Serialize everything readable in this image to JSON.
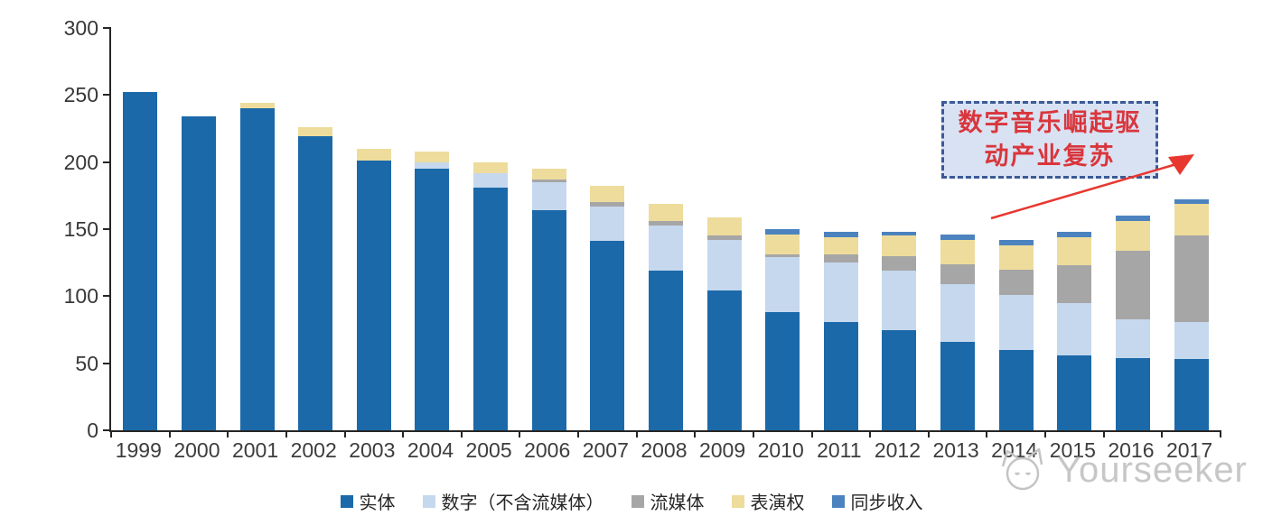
{
  "chart_data": {
    "type": "bar",
    "stacked": true,
    "categories": [
      "1999",
      "2000",
      "2001",
      "2002",
      "2003",
      "2004",
      "2005",
      "2006",
      "2007",
      "2008",
      "2009",
      "2010",
      "2011",
      "2012",
      "2013",
      "2014",
      "2015",
      "2016",
      "2017"
    ],
    "series": [
      {
        "name": "实体",
        "color": "#1b69a9",
        "values": [
          252,
          234,
          240,
          219,
          201,
          195,
          181,
          164,
          141,
          119,
          104,
          88,
          81,
          75,
          66,
          60,
          56,
          54,
          53
        ]
      },
      {
        "name": "数字（不含流媒体）",
        "color": "#c5d8ee",
        "values": [
          0,
          0,
          0,
          0,
          0,
          5,
          11,
          21,
          26,
          34,
          38,
          41,
          44,
          44,
          43,
          41,
          39,
          29,
          28
        ]
      },
      {
        "name": "流媒体",
        "color": "#a6a6a6",
        "values": [
          0,
          0,
          0,
          0,
          0,
          0,
          0,
          2,
          3,
          3,
          3,
          2,
          6,
          11,
          15,
          19,
          28,
          51,
          64
        ]
      },
      {
        "name": "表演权",
        "color": "#eedc9c",
        "values": [
          0,
          0,
          4,
          7,
          9,
          8,
          8,
          8,
          12,
          13,
          14,
          15,
          13,
          15,
          18,
          18,
          21,
          22,
          24
        ]
      },
      {
        "name": "同步收入",
        "color": "#4c83bf",
        "values": [
          0,
          0,
          0,
          0,
          0,
          0,
          0,
          0,
          0,
          0,
          0,
          4,
          4,
          3,
          4,
          4,
          4,
          4,
          3
        ]
      }
    ],
    "title": "",
    "xlabel": "",
    "ylabel": "",
    "ylim": [
      0,
      300
    ],
    "yticks": [
      0,
      50,
      100,
      150,
      200,
      250,
      300
    ],
    "grid": false,
    "legend_position": "bottom"
  },
  "axis": {
    "line_color": "#262626",
    "label_color": "#3d3d3d"
  },
  "annotation": {
    "text": "数字音乐崛起驱动产业复苏",
    "line1": "数字音乐崛起驱",
    "line2": "动产业复苏",
    "text_color": "#d9363c",
    "border_color": "#3b5a96",
    "bg_color": "#d9e2f3",
    "arrow_color": "#e8372f"
  },
  "watermark": {
    "text": "Yourseeker",
    "icon": "cat-face-logo-icon",
    "color": "#c7c7c7"
  }
}
